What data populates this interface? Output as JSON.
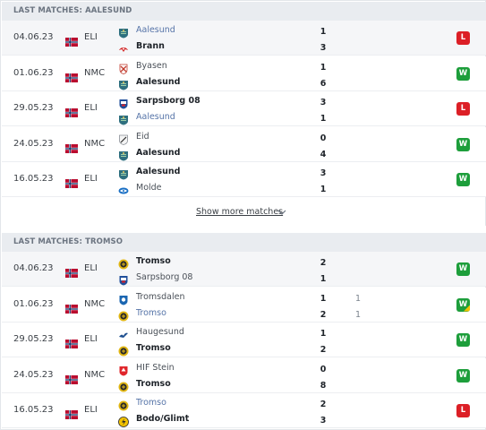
{
  "sections": [
    {
      "title": "LAST MATCHES: AALESUND",
      "matches": [
        {
          "date": "04.06.23",
          "comp": "ELI",
          "home": {
            "name": "Aalesund",
            "crest": "aalesund"
          },
          "away": {
            "name": "Brann",
            "crest": "brann"
          },
          "home_score": "1",
          "away_score": "3",
          "result": "L",
          "style_home": "link",
          "style_away": "win"
        },
        {
          "date": "01.06.23",
          "comp": "NMC",
          "home": {
            "name": "Byasen",
            "crest": "byasen"
          },
          "away": {
            "name": "Aalesund",
            "crest": "aalesund"
          },
          "home_score": "1",
          "away_score": "6",
          "result": "W",
          "style_home": "normal",
          "style_away": "win"
        },
        {
          "date": "29.05.23",
          "comp": "ELI",
          "home": {
            "name": "Sarpsborg 08",
            "crest": "sarpsborg"
          },
          "away": {
            "name": "Aalesund",
            "crest": "aalesund"
          },
          "home_score": "3",
          "away_score": "1",
          "result": "L",
          "style_home": "win",
          "style_away": "link"
        },
        {
          "date": "24.05.23",
          "comp": "NMC",
          "home": {
            "name": "Eid",
            "crest": "eid"
          },
          "away": {
            "name": "Aalesund",
            "crest": "aalesund"
          },
          "home_score": "0",
          "away_score": "4",
          "result": "W",
          "style_home": "normal",
          "style_away": "win"
        },
        {
          "date": "16.05.23",
          "comp": "ELI",
          "home": {
            "name": "Aalesund",
            "crest": "aalesund"
          },
          "away": {
            "name": "Molde",
            "crest": "molde"
          },
          "home_score": "3",
          "away_score": "1",
          "result": "W",
          "style_home": "win",
          "style_away": "normal"
        }
      ]
    },
    {
      "title": "LAST MATCHES: TROMSO",
      "matches": [
        {
          "date": "04.06.23",
          "comp": "ELI",
          "home": {
            "name": "Tromso",
            "crest": "tromso"
          },
          "away": {
            "name": "Sarpsborg 08",
            "crest": "sarpsborg"
          },
          "home_score": "2",
          "away_score": "1",
          "result": "W",
          "style_home": "win",
          "style_away": "normal"
        },
        {
          "date": "01.06.23",
          "comp": "NMC",
          "home": {
            "name": "Tromsdalen",
            "crest": "tromsdalen"
          },
          "away": {
            "name": "Tromso",
            "crest": "tromso"
          },
          "home_score": "1",
          "away_score": "2",
          "home_pen": "1",
          "away_pen": "1",
          "result": "W",
          "result_mark": true,
          "style_home": "normal",
          "style_away": "link"
        },
        {
          "date": "29.05.23",
          "comp": "ELI",
          "home": {
            "name": "Haugesund",
            "crest": "haugesund"
          },
          "away": {
            "name": "Tromso",
            "crest": "tromso"
          },
          "home_score": "1",
          "away_score": "2",
          "result": "W",
          "style_home": "normal",
          "style_away": "win"
        },
        {
          "date": "24.05.23",
          "comp": "NMC",
          "home": {
            "name": "HIF Stein",
            "crest": "hifstein"
          },
          "away": {
            "name": "Tromso",
            "crest": "tromso"
          },
          "home_score": "0",
          "away_score": "8",
          "result": "W",
          "style_home": "normal",
          "style_away": "win"
        },
        {
          "date": "16.05.23",
          "comp": "ELI",
          "home": {
            "name": "Tromso",
            "crest": "tromso"
          },
          "away": {
            "name": "Bodo/Glimt",
            "crest": "bodoglimt"
          },
          "home_score": "2",
          "away_score": "3",
          "result": "L",
          "style_home": "link",
          "style_away": "win"
        }
      ]
    }
  ],
  "show_more": {
    "label": "Show more matches",
    "icon": "chevron-down-icon"
  },
  "icons": {
    "flag": "norway-flag-icon"
  },
  "colors": {
    "win": "#1d9e3b",
    "loss": "#dc1f26",
    "header_bg": "#e9ecf0",
    "link": "#5674a8"
  }
}
